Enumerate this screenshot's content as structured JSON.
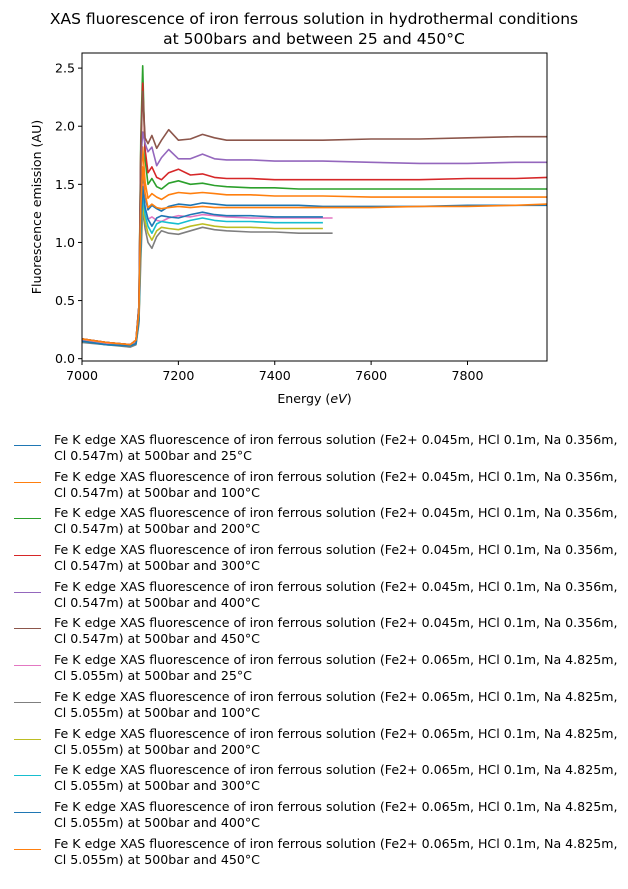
{
  "colors": [
    "#1f77b4",
    "#ff7f0e",
    "#2ca02c",
    "#d62728",
    "#9467bd",
    "#8c564b",
    "#e377c2",
    "#7f7f7f",
    "#bcbd22",
    "#17becf",
    "#1f77b4",
    "#ff7f0e"
  ],
  "chart_data": {
    "type": "line",
    "title": "XAS fluorescence of iron ferrous solution in hydrothermal conditions\nat 500bars and between 25 and 450°C",
    "xlabel": "Energy (eV)",
    "ylabel": "Fluorescence emission (AU)",
    "xlim": [
      7000,
      7965
    ],
    "ylim": [
      -0.02,
      2.63
    ],
    "xticks": [
      7000,
      7200,
      7400,
      7600,
      7800
    ],
    "yticks": [
      0.0,
      0.5,
      1.0,
      1.5,
      2.0,
      2.5
    ],
    "xtick_labels": [
      "7000",
      "7200",
      "7400",
      "7600",
      "7800"
    ],
    "ytick_labels": [
      "0.0",
      "0.5",
      "1.0",
      "1.5",
      "2.0",
      "2.5"
    ],
    "grid": false,
    "legend_position": "below",
    "series": [
      {
        "name": "Fe K edge XAS fluorescence of iron ferrous solution (Fe2+ 0.045m, HCl 0.1m, Na 0.356m, Cl 0.547m) at 500bar and 25°C",
        "x": [
          7000,
          7050,
          7100,
          7112,
          7118,
          7122,
          7126,
          7131,
          7137,
          7145,
          7155,
          7165,
          7180,
          7200,
          7225,
          7250,
          7275,
          7300,
          7350,
          7400,
          7450,
          7500,
          7600,
          7700,
          7800,
          7900,
          7965
        ],
        "y": [
          0.16,
          0.13,
          0.11,
          0.14,
          0.35,
          1.2,
          1.62,
          1.4,
          1.28,
          1.32,
          1.29,
          1.27,
          1.31,
          1.33,
          1.32,
          1.34,
          1.33,
          1.32,
          1.32,
          1.32,
          1.32,
          1.31,
          1.31,
          1.31,
          1.32,
          1.32,
          1.32
        ]
      },
      {
        "name": "Fe K edge XAS fluorescence of iron ferrous solution (Fe2+ 0.045m, HCl 0.1m, Na 0.356m, Cl 0.547m) at 500bar and 100°C",
        "x": [
          7000,
          7050,
          7100,
          7112,
          7118,
          7122,
          7126,
          7131,
          7137,
          7145,
          7155,
          7165,
          7180,
          7200,
          7225,
          7250,
          7275,
          7300,
          7350,
          7400,
          7450,
          7500,
          7600,
          7700,
          7800,
          7900,
          7965
        ],
        "y": [
          0.17,
          0.14,
          0.12,
          0.16,
          0.4,
          1.5,
          1.82,
          1.52,
          1.38,
          1.42,
          1.39,
          1.37,
          1.41,
          1.43,
          1.42,
          1.43,
          1.42,
          1.41,
          1.41,
          1.4,
          1.4,
          1.4,
          1.39,
          1.39,
          1.39,
          1.39,
          1.39
        ]
      },
      {
        "name": "Fe K edge XAS fluorescence of iron ferrous solution (Fe2+ 0.045m, HCl 0.1m, Na 0.356m, Cl 0.547m) at 500bar and 200°C",
        "x": [
          7000,
          7050,
          7100,
          7112,
          7118,
          7122,
          7126,
          7131,
          7137,
          7145,
          7155,
          7165,
          7180,
          7200,
          7225,
          7250,
          7275,
          7300,
          7350,
          7400,
          7450,
          7500,
          7600,
          7700,
          7800,
          7900,
          7965
        ],
        "y": [
          0.17,
          0.14,
          0.12,
          0.16,
          0.45,
          1.9,
          2.52,
          1.72,
          1.5,
          1.55,
          1.48,
          1.46,
          1.51,
          1.53,
          1.5,
          1.51,
          1.49,
          1.48,
          1.47,
          1.47,
          1.46,
          1.46,
          1.46,
          1.46,
          1.46,
          1.46,
          1.46
        ]
      },
      {
        "name": "Fe K edge XAS fluorescence of iron ferrous solution (Fe2+ 0.045m, HCl 0.1m, Na 0.356m, Cl 0.547m) at 500bar and 300°C",
        "x": [
          7000,
          7050,
          7100,
          7112,
          7118,
          7122,
          7126,
          7131,
          7137,
          7145,
          7155,
          7165,
          7180,
          7200,
          7225,
          7250,
          7275,
          7300,
          7350,
          7400,
          7450,
          7500,
          7600,
          7700,
          7800,
          7900,
          7965
        ],
        "y": [
          0.17,
          0.14,
          0.12,
          0.16,
          0.45,
          1.8,
          2.37,
          1.8,
          1.6,
          1.65,
          1.56,
          1.54,
          1.6,
          1.63,
          1.58,
          1.59,
          1.56,
          1.55,
          1.55,
          1.54,
          1.54,
          1.54,
          1.54,
          1.54,
          1.55,
          1.55,
          1.56
        ]
      },
      {
        "name": "Fe K edge XAS fluorescence of iron ferrous solution (Fe2+ 0.045m, HCl 0.1m, Na 0.356m, Cl 0.547m) at 500bar and 400°C",
        "x": [
          7000,
          7050,
          7100,
          7112,
          7118,
          7122,
          7126,
          7131,
          7137,
          7145,
          7155,
          7165,
          7180,
          7200,
          7225,
          7250,
          7275,
          7300,
          7350,
          7400,
          7450,
          7500,
          7600,
          7700,
          7800,
          7900,
          7965
        ],
        "y": [
          0.17,
          0.14,
          0.12,
          0.16,
          0.45,
          1.7,
          1.95,
          1.85,
          1.78,
          1.82,
          1.66,
          1.73,
          1.8,
          1.72,
          1.72,
          1.76,
          1.72,
          1.71,
          1.71,
          1.7,
          1.7,
          1.7,
          1.69,
          1.68,
          1.68,
          1.69,
          1.69
        ]
      },
      {
        "name": "Fe K edge XAS fluorescence of iron ferrous solution (Fe2+ 0.045m, HCl 0.1m, Na 0.356m, Cl 0.547m) at 500bar and 450°C",
        "x": [
          7000,
          7050,
          7100,
          7112,
          7118,
          7122,
          7126,
          7131,
          7137,
          7145,
          7155,
          7165,
          7180,
          7200,
          7225,
          7250,
          7275,
          7300,
          7350,
          7400,
          7450,
          7500,
          7600,
          7700,
          7800,
          7900,
          7965
        ],
        "y": [
          0.17,
          0.14,
          0.12,
          0.16,
          0.45,
          1.8,
          2.3,
          1.9,
          1.85,
          1.92,
          1.81,
          1.88,
          1.97,
          1.88,
          1.89,
          1.93,
          1.9,
          1.88,
          1.88,
          1.88,
          1.88,
          1.88,
          1.89,
          1.89,
          1.9,
          1.91,
          1.91
        ]
      },
      {
        "name": "Fe K edge XAS fluorescence of iron ferrous solution (Fe2+ 0.065m, HCl 0.1m, Na 4.825m, Cl 5.055m) at 500bar and 25°C",
        "x": [
          7000,
          7050,
          7100,
          7112,
          7118,
          7122,
          7126,
          7131,
          7137,
          7145,
          7155,
          7165,
          7180,
          7200,
          7225,
          7250,
          7275,
          7300,
          7350,
          7400,
          7450,
          7500,
          7520
        ],
        "y": [
          0.16,
          0.13,
          0.11,
          0.14,
          0.35,
          1.15,
          1.5,
          1.3,
          1.2,
          1.22,
          1.19,
          1.18,
          1.21,
          1.23,
          1.22,
          1.24,
          1.23,
          1.22,
          1.21,
          1.21,
          1.21,
          1.21,
          1.21
        ]
      },
      {
        "name": "Fe K edge XAS fluorescence of iron ferrous solution (Fe2+ 0.065m, HCl 0.1m, Na 4.825m, Cl 5.055m) at 500bar and 100°C",
        "x": [
          7000,
          7050,
          7100,
          7112,
          7118,
          7122,
          7126,
          7131,
          7137,
          7145,
          7155,
          7165,
          7180,
          7200,
          7225,
          7250,
          7275,
          7300,
          7350,
          7400,
          7450,
          7500,
          7520
        ],
        "y": [
          0.14,
          0.12,
          0.1,
          0.12,
          0.3,
          0.85,
          1.28,
          1.12,
          1.0,
          0.95,
          1.05,
          1.1,
          1.08,
          1.07,
          1.1,
          1.13,
          1.11,
          1.1,
          1.09,
          1.09,
          1.08,
          1.08,
          1.08
        ]
      },
      {
        "name": "Fe K edge XAS fluorescence of iron ferrous solution (Fe2+ 0.065m, HCl 0.1m, Na 4.825m, Cl 5.055m) at 500bar and 200°C",
        "x": [
          7000,
          7050,
          7100,
          7112,
          7118,
          7122,
          7126,
          7131,
          7137,
          7145,
          7155,
          7165,
          7180,
          7200,
          7225,
          7250,
          7275,
          7300,
          7350,
          7400,
          7450,
          7500
        ],
        "y": [
          0.15,
          0.12,
          0.11,
          0.13,
          0.32,
          1.0,
          1.32,
          1.18,
          1.08,
          1.02,
          1.1,
          1.13,
          1.12,
          1.11,
          1.14,
          1.16,
          1.14,
          1.13,
          1.13,
          1.12,
          1.12,
          1.12
        ]
      },
      {
        "name": "Fe K edge XAS fluorescence of iron ferrous solution (Fe2+ 0.065m, HCl 0.1m, Na 4.825m, Cl 5.055m) at 500bar and 300°C",
        "x": [
          7000,
          7050,
          7100,
          7112,
          7118,
          7122,
          7126,
          7131,
          7137,
          7145,
          7155,
          7165,
          7180,
          7200,
          7225,
          7250,
          7275,
          7300,
          7350,
          7400,
          7450,
          7500
        ],
        "y": [
          0.15,
          0.12,
          0.11,
          0.13,
          0.33,
          1.05,
          1.4,
          1.24,
          1.14,
          1.08,
          1.16,
          1.18,
          1.17,
          1.16,
          1.19,
          1.21,
          1.19,
          1.18,
          1.18,
          1.17,
          1.17,
          1.17
        ]
      },
      {
        "name": "Fe K edge XAS fluorescence of iron ferrous solution (Fe2+ 0.065m, HCl 0.1m, Na 4.825m, Cl 5.055m) at 500bar and 400°C",
        "x": [
          7000,
          7050,
          7100,
          7112,
          7118,
          7122,
          7126,
          7131,
          7137,
          7145,
          7155,
          7165,
          7180,
          7200,
          7225,
          7250,
          7275,
          7300,
          7350,
          7400,
          7450,
          7500
        ],
        "y": [
          0.15,
          0.12,
          0.11,
          0.13,
          0.33,
          1.1,
          1.48,
          1.3,
          1.2,
          1.14,
          1.21,
          1.23,
          1.22,
          1.21,
          1.24,
          1.26,
          1.24,
          1.23,
          1.23,
          1.22,
          1.22,
          1.22
        ]
      },
      {
        "name": "Fe K edge XAS fluorescence of iron ferrous solution (Fe2+ 0.065m, HCl 0.1m, Na 4.825m, Cl 5.055m) at 500bar and 450°C",
        "x": [
          7000,
          7050,
          7100,
          7112,
          7118,
          7122,
          7126,
          7131,
          7137,
          7145,
          7155,
          7165,
          7180,
          7200,
          7225,
          7250,
          7275,
          7300,
          7350,
          7400,
          7450,
          7500,
          7600,
          7700,
          7800,
          7900,
          7965
        ],
        "y": [
          0.17,
          0.14,
          0.12,
          0.16,
          0.4,
          1.3,
          1.65,
          1.42,
          1.3,
          1.33,
          1.3,
          1.29,
          1.3,
          1.31,
          1.3,
          1.31,
          1.3,
          1.3,
          1.3,
          1.3,
          1.3,
          1.3,
          1.3,
          1.31,
          1.31,
          1.32,
          1.33
        ]
      }
    ]
  }
}
